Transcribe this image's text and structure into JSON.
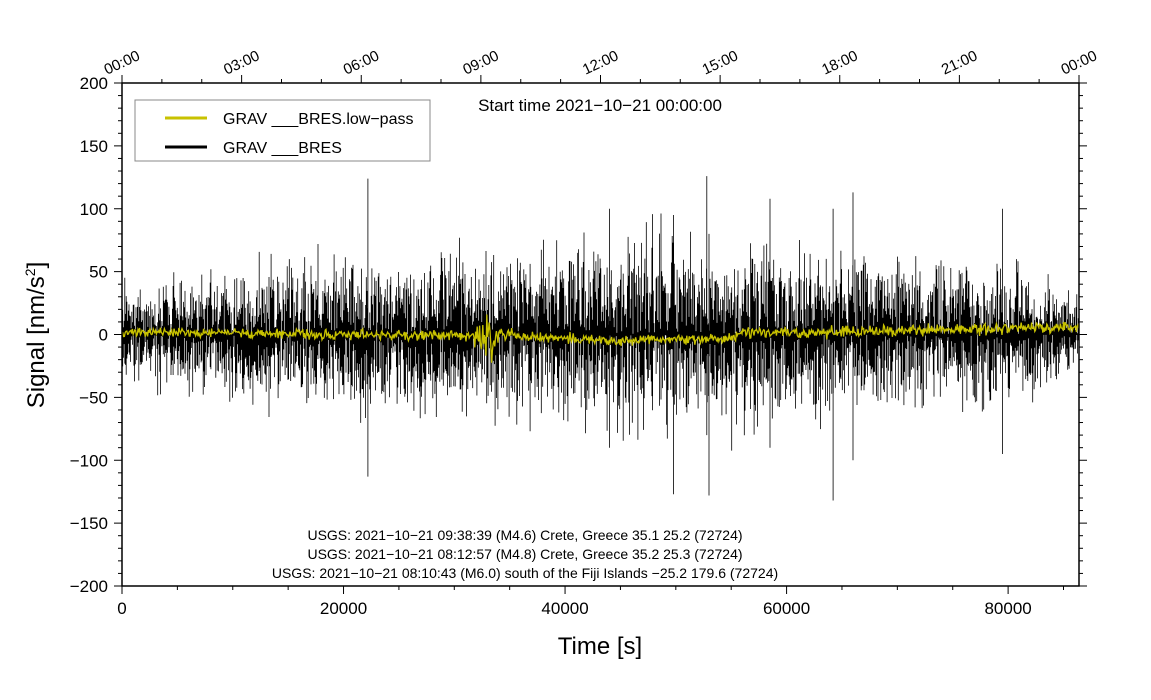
{
  "chart_data": {
    "type": "line",
    "xlabel": "Time [s]",
    "ylabel": "Signal [nm/s",
    "ylabel_sup": "2",
    "ylabel_close": "]",
    "xlim": [
      0,
      86400
    ],
    "ylim": [
      -200,
      200
    ],
    "x_ticks": [
      0,
      20000,
      40000,
      60000,
      80000
    ],
    "x_tick_labels": [
      "0",
      "20000",
      "40000",
      "60000",
      "80000"
    ],
    "y_ticks": [
      -200,
      -150,
      -100,
      -50,
      0,
      50,
      100,
      150,
      200
    ],
    "y_tick_labels": [
      "−200",
      "−150",
      "−100",
      "−50",
      "0",
      "50",
      "100",
      "150",
      "200"
    ],
    "top_ticks": [
      0,
      10800,
      21600,
      32400,
      43200,
      54000,
      64800,
      75600,
      86400
    ],
    "top_tick_labels": [
      "00:00",
      "03:00",
      "06:00",
      "09:00",
      "12:00",
      "15:00",
      "18:00",
      "21:00",
      "00:00"
    ],
    "start_time_label": "Start time 2021−10−21 00:00:00",
    "legend_position": "top-left",
    "series": [
      {
        "name": "GRAV ___BRES.low−pass",
        "color": "#c8c200",
        "trend": [
          [
            0,
            2
          ],
          [
            10000,
            1
          ],
          [
            20000,
            0
          ],
          [
            30000,
            -1
          ],
          [
            34000,
            0
          ],
          [
            40000,
            -3
          ],
          [
            45000,
            -5
          ],
          [
            50000,
            -4
          ],
          [
            55000,
            -3
          ],
          [
            56000,
            2
          ],
          [
            60000,
            1
          ],
          [
            70000,
            3
          ],
          [
            80000,
            5
          ],
          [
            86400,
            6
          ]
        ],
        "noise_amplitude": 2,
        "events": [
          {
            "x": 33000,
            "amplitude": 12,
            "width": 1500
          },
          {
            "x": 55900,
            "amplitude": 14,
            "width": 150
          }
        ]
      },
      {
        "name": "GRAV ___BRES",
        "color": "#000000",
        "envelope": [
          [
            0,
            30
          ],
          [
            10000,
            45
          ],
          [
            20000,
            55
          ],
          [
            30000,
            60
          ],
          [
            40000,
            65
          ],
          [
            50000,
            68
          ],
          [
            60000,
            60
          ],
          [
            70000,
            55
          ],
          [
            80000,
            45
          ],
          [
            86400,
            35
          ]
        ],
        "spikes": [
          {
            "x": 22200,
            "max": 124,
            "min": -113
          },
          {
            "x": 44000,
            "max": 100,
            "min": -90
          },
          {
            "x": 49800,
            "max": 95,
            "min": -127
          },
          {
            "x": 52800,
            "max": 126,
            "min": -80
          },
          {
            "x": 53000,
            "max": 80,
            "min": -128
          },
          {
            "x": 58500,
            "max": 108,
            "min": -90
          },
          {
            "x": 64200,
            "max": 100,
            "min": -132
          },
          {
            "x": 66000,
            "max": 113,
            "min": -100
          },
          {
            "x": 79500,
            "max": 100,
            "min": -95
          }
        ]
      }
    ],
    "annotations": [
      "USGS: 2021−10−21 09:38:39 (M4.6) Crete, Greece 35.1 25.2 (72724)",
      "USGS: 2021−10−21 08:12:57 (M4.8) Crete, Greece 35.2 25.3 (72724)",
      "USGS: 2021−10−21 08:10:43 (M6.0) south of the Fiji Islands −25.2 179.6 (72724)"
    ]
  }
}
